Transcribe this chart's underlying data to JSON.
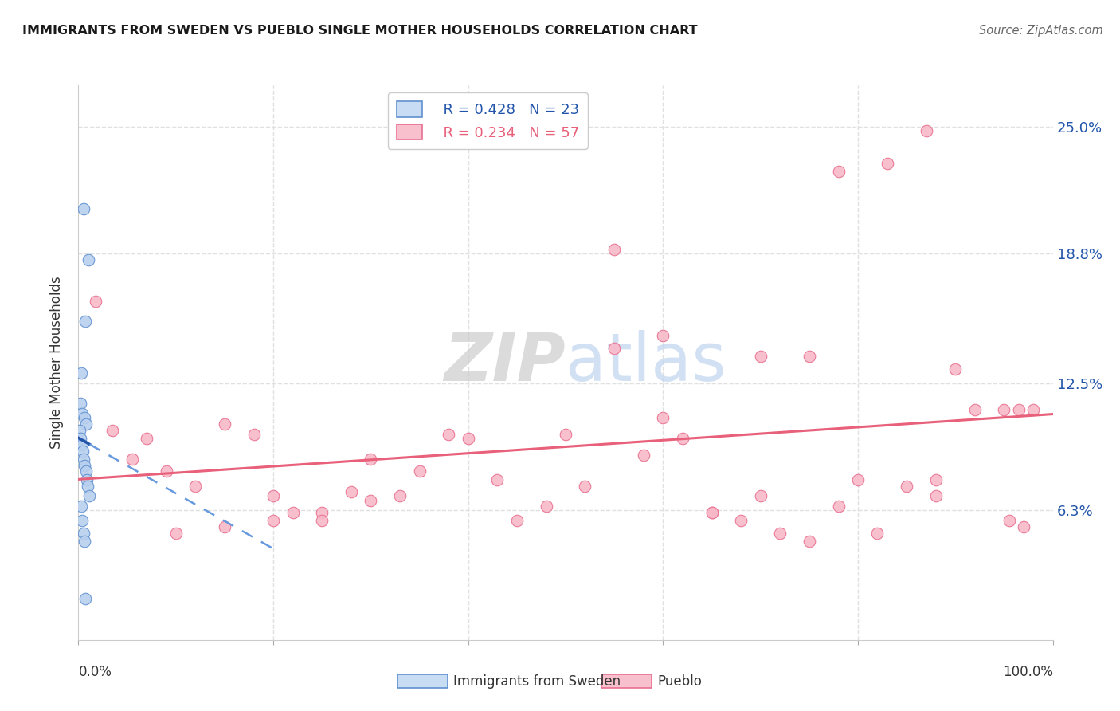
{
  "title": "IMMIGRANTS FROM SWEDEN VS PUEBLO SINGLE MOTHER HOUSEHOLDS CORRELATION CHART",
  "source": "Source: ZipAtlas.com",
  "ylabel": "Single Mother Households",
  "ytick_values": [
    6.3,
    12.5,
    18.8,
    25.0
  ],
  "blue_scatter_x": [
    0.5,
    1.0,
    0.7,
    0.3,
    0.2,
    0.4,
    0.6,
    0.8,
    0.15,
    0.25,
    0.35,
    0.45,
    0.55,
    0.65,
    0.75,
    0.85,
    0.95,
    1.1,
    0.3,
    0.4,
    0.5,
    0.6,
    0.7
  ],
  "blue_scatter_y": [
    21.0,
    18.5,
    15.5,
    13.0,
    11.5,
    11.0,
    10.8,
    10.5,
    10.2,
    9.8,
    9.5,
    9.2,
    8.8,
    8.5,
    8.2,
    7.8,
    7.5,
    7.0,
    6.5,
    5.8,
    5.2,
    4.8,
    2.0
  ],
  "pink_scatter_x": [
    1.8,
    3.5,
    5.5,
    7.0,
    9.0,
    12.0,
    15.0,
    18.0,
    20.0,
    22.0,
    25.0,
    28.0,
    30.0,
    33.0,
    35.0,
    38.0,
    40.0,
    43.0,
    45.0,
    48.0,
    50.0,
    52.0,
    55.0,
    58.0,
    60.0,
    62.0,
    65.0,
    68.0,
    70.0,
    72.0,
    75.0,
    78.0,
    80.0,
    82.0,
    85.0,
    87.0,
    90.0,
    92.0,
    95.0,
    95.5,
    96.5,
    97.0,
    98.0,
    65.0,
    70.0,
    78.0,
    83.0,
    88.0,
    10.0,
    15.0,
    20.0,
    25.0,
    30.0,
    55.0,
    60.0,
    88.0,
    75.0
  ],
  "pink_scatter_y": [
    16.5,
    10.2,
    8.8,
    9.8,
    8.2,
    7.5,
    10.5,
    10.0,
    7.0,
    6.2,
    6.2,
    7.2,
    8.8,
    7.0,
    8.2,
    10.0,
    9.8,
    7.8,
    5.8,
    6.5,
    10.0,
    7.5,
    14.2,
    9.0,
    14.8,
    9.8,
    6.2,
    5.8,
    7.0,
    5.2,
    13.8,
    6.5,
    7.8,
    5.2,
    7.5,
    24.8,
    13.2,
    11.2,
    11.2,
    5.8,
    11.2,
    5.5,
    11.2,
    6.2,
    13.8,
    22.8,
    23.2,
    7.0,
    5.2,
    5.5,
    5.8,
    5.8,
    6.8,
    19.0,
    10.8,
    7.8,
    4.8
  ],
  "blue_color": "#b8d0ee",
  "blue_edge_color": "#6090d0",
  "pink_color": "#f8b8c8",
  "pink_edge_color": "#e87090",
  "blue_line_solid_color": "#2255aa",
  "blue_line_dash_color": "#6699dd",
  "pink_line_color": "#e8607a",
  "background_color": "#ffffff",
  "grid_color": "#e0e0e0",
  "xmin": 0,
  "xmax": 100,
  "ymin": 0,
  "ymax": 27,
  "legend_blue_r": "0.428",
  "legend_blue_n": "23",
  "legend_pink_r": "0.234",
  "legend_pink_n": "57",
  "blue_label": "Immigrants from Sweden",
  "pink_label": "Pueblo"
}
